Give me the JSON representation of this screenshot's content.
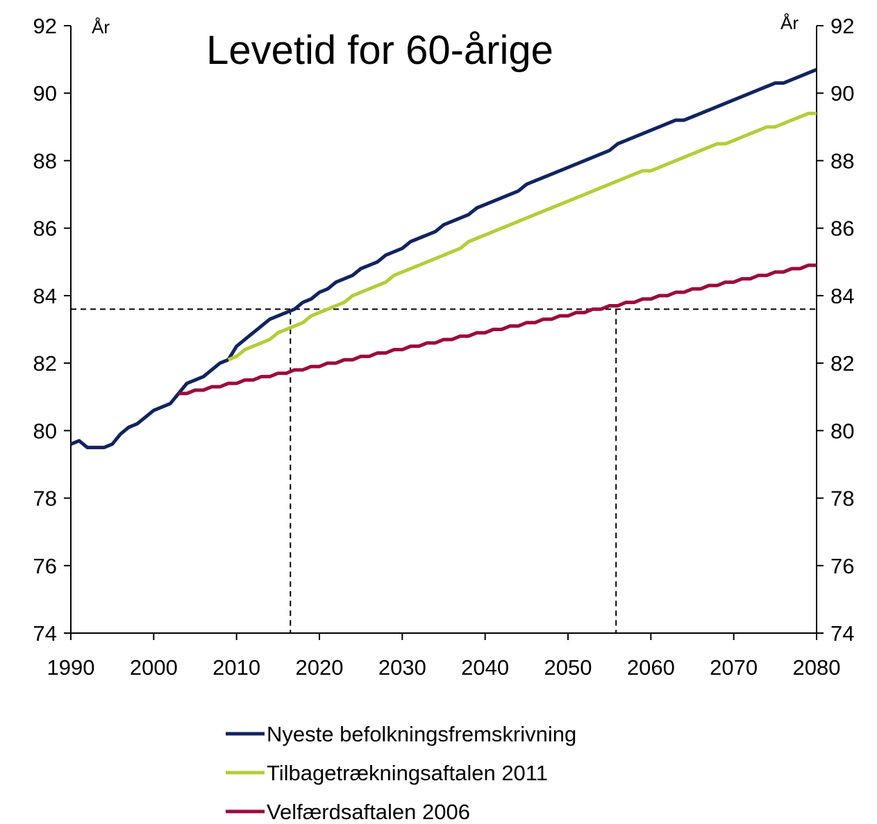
{
  "chart_data": {
    "type": "line",
    "title": "Levetid for 60-årige",
    "y_label": "År",
    "y2_label": "År",
    "x": [
      1990,
      1991,
      1992,
      1993,
      1994,
      1995,
      1996,
      1997,
      1998,
      1999,
      2000,
      2001,
      2002,
      2003,
      2004,
      2005,
      2006,
      2007,
      2008,
      2009,
      2010,
      2011,
      2012,
      2013,
      2014,
      2015,
      2016,
      2017,
      2018,
      2019,
      2020,
      2021,
      2022,
      2023,
      2024,
      2025,
      2026,
      2027,
      2028,
      2029,
      2030,
      2031,
      2032,
      2033,
      2034,
      2035,
      2036,
      2037,
      2038,
      2039,
      2040,
      2041,
      2042,
      2043,
      2044,
      2045,
      2046,
      2047,
      2048,
      2049,
      2050,
      2051,
      2052,
      2053,
      2054,
      2055,
      2056,
      2057,
      2058,
      2059,
      2060,
      2061,
      2062,
      2063,
      2064,
      2065,
      2066,
      2067,
      2068,
      2069,
      2070,
      2071,
      2072,
      2073,
      2074,
      2075,
      2076,
      2077,
      2078,
      2079,
      2080
    ],
    "series": [
      {
        "name": "Nyeste befolkningsfremskrivning",
        "color": "#12245e",
        "values": [
          79.6,
          79.7,
          79.5,
          79.5,
          79.5,
          79.6,
          79.9,
          80.1,
          80.2,
          80.4,
          80.6,
          80.7,
          80.8,
          81.1,
          81.4,
          81.5,
          81.6,
          81.8,
          82.0,
          82.1,
          82.5,
          82.7,
          82.9,
          83.1,
          83.3,
          83.4,
          83.5,
          83.6,
          83.8,
          83.9,
          84.1,
          84.2,
          84.4,
          84.5,
          84.6,
          84.8,
          84.9,
          85.0,
          85.2,
          85.3,
          85.4,
          85.6,
          85.7,
          85.8,
          85.9,
          86.1,
          86.2,
          86.3,
          86.4,
          86.6,
          86.7,
          86.8,
          86.9,
          87.0,
          87.1,
          87.3,
          87.4,
          87.5,
          87.6,
          87.7,
          87.8,
          87.9,
          88.0,
          88.1,
          88.2,
          88.3,
          88.5,
          88.6,
          88.7,
          88.8,
          88.9,
          89.0,
          89.1,
          89.2,
          89.2,
          89.3,
          89.4,
          89.5,
          89.6,
          89.7,
          89.8,
          89.9,
          90.0,
          90.1,
          90.2,
          90.3,
          90.3,
          90.4,
          90.5,
          90.6,
          90.7
        ]
      },
      {
        "name": "Tilbagetrækningsaftalen 2011",
        "color": "#b5cc3a",
        "values": [
          null,
          null,
          null,
          null,
          null,
          null,
          null,
          null,
          null,
          null,
          null,
          null,
          null,
          null,
          null,
          null,
          null,
          null,
          null,
          82.1,
          82.2,
          82.4,
          82.5,
          82.6,
          82.7,
          82.9,
          83.0,
          83.1,
          83.2,
          83.4,
          83.5,
          83.6,
          83.7,
          83.8,
          84.0,
          84.1,
          84.2,
          84.3,
          84.4,
          84.6,
          84.7,
          84.8,
          84.9,
          85.0,
          85.1,
          85.2,
          85.3,
          85.4,
          85.6,
          85.7,
          85.8,
          85.9,
          86.0,
          86.1,
          86.2,
          86.3,
          86.4,
          86.5,
          86.6,
          86.7,
          86.8,
          86.9,
          87.0,
          87.1,
          87.2,
          87.3,
          87.4,
          87.5,
          87.6,
          87.7,
          87.7,
          87.8,
          87.9,
          88.0,
          88.1,
          88.2,
          88.3,
          88.4,
          88.5,
          88.5,
          88.6,
          88.7,
          88.8,
          88.9,
          89.0,
          89.0,
          89.1,
          89.2,
          89.3,
          89.4,
          89.4
        ]
      },
      {
        "name": "Velfærdsaftalen 2006",
        "color": "#9b0a3c",
        "values": [
          null,
          null,
          null,
          null,
          null,
          null,
          null,
          null,
          null,
          null,
          null,
          null,
          null,
          81.1,
          81.1,
          81.2,
          81.2,
          81.3,
          81.3,
          81.4,
          81.4,
          81.5,
          81.5,
          81.6,
          81.6,
          81.7,
          81.7,
          81.8,
          81.8,
          81.9,
          81.9,
          82.0,
          82.0,
          82.1,
          82.1,
          82.2,
          82.2,
          82.3,
          82.3,
          82.4,
          82.4,
          82.5,
          82.5,
          82.6,
          82.6,
          82.7,
          82.7,
          82.8,
          82.8,
          82.9,
          82.9,
          83.0,
          83.0,
          83.1,
          83.1,
          83.2,
          83.2,
          83.3,
          83.3,
          83.4,
          83.4,
          83.5,
          83.5,
          83.6,
          83.6,
          83.7,
          83.7,
          83.8,
          83.8,
          83.9,
          83.9,
          84.0,
          84.0,
          84.1,
          84.1,
          84.2,
          84.2,
          84.3,
          84.3,
          84.4,
          84.4,
          84.5,
          84.5,
          84.6,
          84.6,
          84.7,
          84.7,
          84.8,
          84.8,
          84.9,
          84.9
        ]
      }
    ],
    "reference_lines": {
      "y": 83.6,
      "x": [
        2016.5,
        2055.8
      ]
    },
    "xlim": [
      1990,
      2080
    ],
    "xticks": [
      1990,
      2000,
      2010,
      2020,
      2030,
      2040,
      2050,
      2060,
      2070,
      2080
    ],
    "ylim": [
      74,
      92
    ],
    "yticks": [
      74,
      76,
      78,
      80,
      82,
      84,
      86,
      88,
      90,
      92
    ],
    "y2lim": [
      74,
      92
    ],
    "y2ticks": [
      74,
      76,
      78,
      80,
      82,
      84,
      86,
      88,
      90,
      92
    ],
    "grid": false,
    "legend": "bottom"
  }
}
